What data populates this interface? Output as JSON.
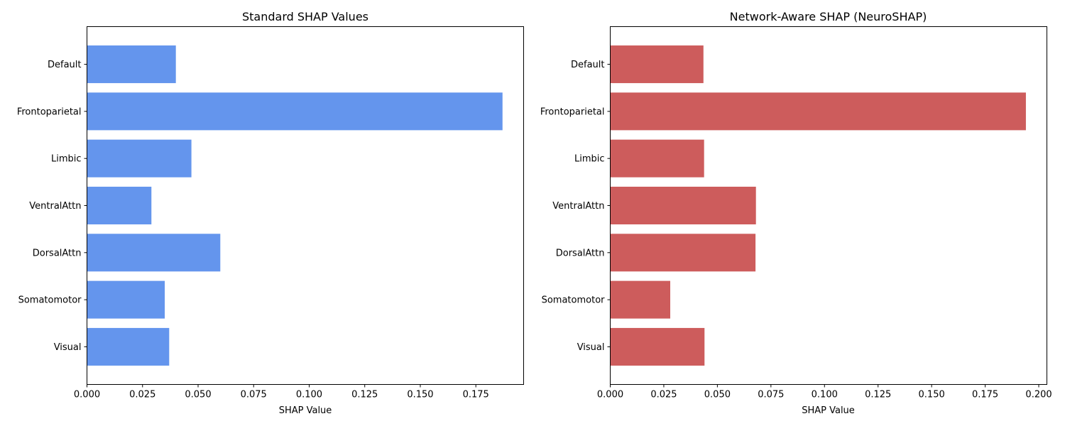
{
  "chart_data": [
    {
      "type": "bar",
      "orientation": "horizontal",
      "title": "Standard SHAP Values",
      "xlabel": "SHAP Value",
      "ylabel": "",
      "categories": [
        "Default",
        "Frontoparietal",
        "Limbic",
        "VentralAttn",
        "DorsalAttn",
        "Somatomotor",
        "Visual"
      ],
      "values": [
        0.04,
        0.187,
        0.047,
        0.029,
        0.06,
        0.035,
        0.037
      ],
      "xlim": [
        0,
        0.1965
      ],
      "xticks": [
        0.0,
        0.025,
        0.05,
        0.075,
        0.1,
        0.125,
        0.15,
        0.175
      ],
      "xtick_labels": [
        "0.000",
        "0.025",
        "0.050",
        "0.075",
        "0.100",
        "0.125",
        "0.150",
        "0.175"
      ],
      "color": "#6495ED",
      "grid": false,
      "legend": "none"
    },
    {
      "type": "bar",
      "orientation": "horizontal",
      "title": "Network-Aware SHAP (NeuroSHAP)",
      "xlabel": "SHAP Value",
      "ylabel": "",
      "categories": [
        "Default",
        "Frontoparietal",
        "Limbic",
        "VentralAttn",
        "DorsalAttn",
        "Somatomotor",
        "Visual"
      ],
      "values": [
        0.0435,
        0.194,
        0.0438,
        0.068,
        0.0678,
        0.028,
        0.044
      ],
      "xlim": [
        0,
        0.2038
      ],
      "xticks": [
        0.0,
        0.025,
        0.05,
        0.075,
        0.1,
        0.125,
        0.15,
        0.175,
        0.2
      ],
      "xtick_labels": [
        "0.000",
        "0.025",
        "0.050",
        "0.075",
        "0.100",
        "0.125",
        "0.150",
        "0.175",
        "0.200"
      ],
      "color": "#CD5C5C",
      "grid": false,
      "legend": "none"
    }
  ]
}
